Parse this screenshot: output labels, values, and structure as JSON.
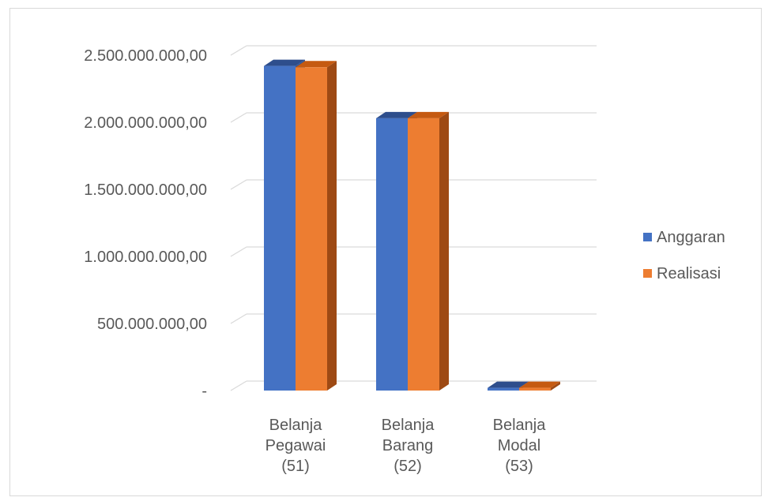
{
  "chart_data": {
    "type": "bar",
    "categories": [
      [
        "Belanja",
        "Pegawai",
        "(51)"
      ],
      [
        "Belanja",
        "Barang",
        "(52)"
      ],
      [
        "Belanja",
        "Modal",
        "(53)"
      ]
    ],
    "series": [
      {
        "name": "Anggaran",
        "color": "#4472c4",
        "side_color": "#2f5597",
        "top_color": "#2e4e8c",
        "values": [
          2420000000,
          2030000000,
          20000000
        ]
      },
      {
        "name": "Realisasi",
        "color": "#ed7d31",
        "side_color": "#9e4a14",
        "top_color": "#c55a11",
        "values": [
          2410000000,
          2030000000,
          20000000
        ]
      }
    ],
    "y_ticks": [
      {
        "value": 0,
        "label": "-"
      },
      {
        "value": 500000000,
        "label": "500.000.000,00"
      },
      {
        "value": 1000000000,
        "label": "1.000.000.000,00"
      },
      {
        "value": 1500000000,
        "label": "1.500.000.000,00"
      },
      {
        "value": 2000000000,
        "label": "2.000.000.000,00"
      },
      {
        "value": 2500000000,
        "label": "2.500.000.000,00"
      }
    ],
    "ylim": [
      0,
      2500000000
    ],
    "title": "",
    "xlabel": "",
    "ylabel": "",
    "grid": true,
    "legend_position": "right",
    "gridline_color": "#d9d9d9"
  }
}
